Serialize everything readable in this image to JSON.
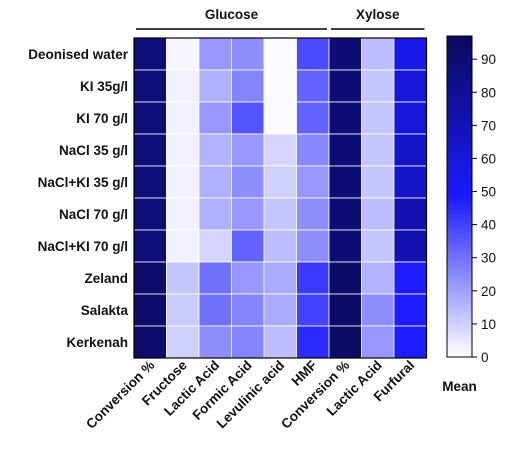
{
  "chart_data": {
    "type": "heatmap",
    "groups": [
      {
        "label": "Glucose",
        "columns": [
          0,
          5
        ]
      },
      {
        "label": "Xylose",
        "columns": [
          6,
          8
        ]
      }
    ],
    "columns": [
      "Conversion %",
      "Fructose",
      "Lactic Acid",
      "Formic Acid",
      "Levulinic acid",
      "HMF",
      "Conversion %",
      "Lactic Acid",
      "Furfural"
    ],
    "rows": [
      "Deonised water",
      "KI 35g/l",
      "KI 70 g/l",
      "NaCl 35 g/l",
      "NaCl+KI 35 g/l",
      "NaCl 70 g/l",
      "NaCl+KI 70 g/l",
      "Zeland",
      "Salakta",
      "Kerkenah"
    ],
    "values": [
      [
        88,
        2,
        22,
        24,
        1,
        38,
        90,
        14,
        55
      ],
      [
        88,
        3,
        17,
        26,
        1,
        33,
        90,
        12,
        60
      ],
      [
        88,
        3,
        22,
        36,
        1,
        33,
        90,
        12,
        60
      ],
      [
        88,
        3,
        16,
        22,
        9,
        25,
        90,
        12,
        65
      ],
      [
        88,
        3,
        17,
        24,
        10,
        22,
        90,
        12,
        65
      ],
      [
        88,
        3,
        17,
        22,
        12,
        24,
        90,
        14,
        72
      ],
      [
        88,
        3,
        9,
        33,
        14,
        24,
        90,
        12,
        72
      ],
      [
        92,
        12,
        30,
        22,
        18,
        42,
        94,
        16,
        48
      ],
      [
        92,
        11,
        30,
        26,
        18,
        40,
        94,
        24,
        48
      ],
      [
        92,
        10,
        24,
        26,
        14,
        45,
        94,
        22,
        48
      ]
    ],
    "colorbar": {
      "label": "Mean",
      "min": 0,
      "max": 97,
      "ticks": [
        0,
        10,
        20,
        30,
        40,
        50,
        60,
        70,
        80,
        90
      ],
      "color_low": "#ffffff",
      "color_mid": "#1a1aff",
      "color_high": "#0a0a5c"
    }
  }
}
